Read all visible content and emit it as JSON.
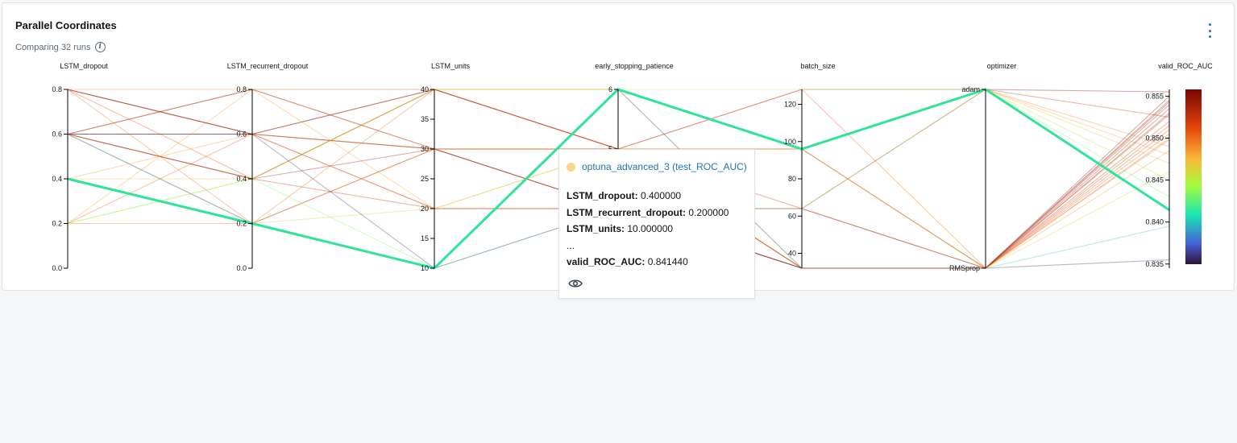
{
  "card": {
    "title": "Parallel Coordinates",
    "subtitle": "Comparing 32 runs",
    "info_icon": "info-icon",
    "menu_icon": "kebab-menu-icon"
  },
  "tooltip": {
    "run_name": "optuna_advanced_3 (test_ROC_AUC)",
    "run_color": "#fbd68a",
    "rows": [
      {
        "key": "LSTM_dropout:",
        "value": "0.400000"
      },
      {
        "key": "LSTM_recurrent_dropout:",
        "value": "0.200000"
      },
      {
        "key": "LSTM_units:",
        "value": "10.000000"
      },
      {
        "key": "...",
        "value": ""
      },
      {
        "key": "valid_ROC_AUC:",
        "value": "0.841440"
      }
    ],
    "view_icon": "eye-icon"
  },
  "chart_data": {
    "type": "parallel_coordinates",
    "axes": [
      {
        "name": "LSTM_dropout",
        "ticks": [
          "0.0",
          "0.2",
          "0.4",
          "0.6",
          "0.8"
        ],
        "range": [
          0,
          0.8
        ]
      },
      {
        "name": "LSTM_recurrent_dropout",
        "ticks": [
          "0.0",
          "0.2",
          "0.4",
          "0.6",
          "0.8"
        ],
        "range": [
          0,
          0.8
        ]
      },
      {
        "name": "LSTM_units",
        "ticks": [
          "10",
          "15",
          "20",
          "25",
          "30",
          "35",
          "40"
        ],
        "range": [
          10,
          40
        ]
      },
      {
        "name": "early_stopping_patience",
        "ticks": [
          "5",
          "6"
        ],
        "range": [
          3,
          6
        ]
      },
      {
        "name": "batch_size",
        "ticks": [
          "40",
          "60",
          "80",
          "100",
          "120"
        ],
        "range": [
          32,
          128
        ]
      },
      {
        "name": "optimizer",
        "ticks": [
          "RMSprop",
          "adam"
        ],
        "categories": [
          "RMSprop",
          "adam"
        ]
      },
      {
        "name": "valid_ROC_AUC",
        "ticks": [
          "0.835",
          "0.840",
          "0.845",
          "0.850",
          "0.855"
        ],
        "range": [
          0.8345,
          0.8558
        ]
      }
    ],
    "colorbar": {
      "metric": "valid_ROC_AUC",
      "range": [
        0.8345,
        0.8558
      ]
    },
    "highlighted_run": {
      "values": [
        0.4,
        0.2,
        10,
        6,
        96,
        "adam",
        0.84144
      ],
      "color": "#2ee39a"
    },
    "runs": [
      [
        0.8,
        0.6,
        40,
        5,
        128,
        "adam",
        0.8555
      ],
      [
        0.6,
        0.6,
        30,
        5,
        96,
        "RMSprop",
        0.8545
      ],
      [
        0.6,
        0.4,
        30,
        4,
        64,
        "RMSprop",
        0.854
      ],
      [
        0.6,
        0.8,
        40,
        6,
        32,
        "RMSprop",
        0.852
      ],
      [
        0.8,
        0.4,
        40,
        5,
        32,
        "RMSprop",
        0.851
      ],
      [
        0.2,
        0.8,
        20,
        5,
        96,
        "adam",
        0.848
      ],
      [
        0.6,
        0.2,
        30,
        4,
        32,
        "RMSprop",
        0.853
      ],
      [
        0.2,
        0.2,
        30,
        5,
        128,
        "RMSprop",
        0.85
      ],
      [
        0.8,
        0.6,
        20,
        4,
        32,
        "RMSprop",
        0.8515
      ],
      [
        0.4,
        0.4,
        40,
        6,
        96,
        "adam",
        0.847
      ],
      [
        0.6,
        0.6,
        40,
        5,
        32,
        "RMSprop",
        0.8535
      ],
      [
        0.2,
        0.4,
        10,
        4,
        64,
        "adam",
        0.843
      ],
      [
        0.6,
        0.2,
        10,
        6,
        32,
        "RMSprop",
        0.8395
      ],
      [
        0.8,
        0.8,
        30,
        5,
        96,
        "adam",
        0.849
      ],
      [
        0.2,
        0.6,
        20,
        4,
        32,
        "RMSprop",
        0.8505
      ],
      [
        0.6,
        0.4,
        40,
        5,
        64,
        "adam",
        0.8525
      ],
      [
        0.8,
        0.6,
        30,
        4,
        32,
        "RMSprop",
        0.855
      ],
      [
        0.4,
        0.2,
        20,
        5,
        96,
        "RMSprop",
        0.846
      ],
      [
        0.6,
        0.8,
        30,
        5,
        32,
        "RMSprop",
        0.8543
      ],
      [
        0.2,
        0.4,
        40,
        6,
        128,
        "adam",
        0.845
      ],
      [
        0.6,
        0.6,
        10,
        4,
        32,
        "RMSprop",
        0.8355
      ],
      [
        0.8,
        0.2,
        40,
        5,
        96,
        "RMSprop",
        0.8498
      ],
      [
        0.4,
        0.6,
        30,
        5,
        32,
        "RMSprop",
        0.8485
      ],
      [
        0.6,
        0.4,
        20,
        4,
        64,
        "RMSprop",
        0.8528
      ]
    ]
  }
}
